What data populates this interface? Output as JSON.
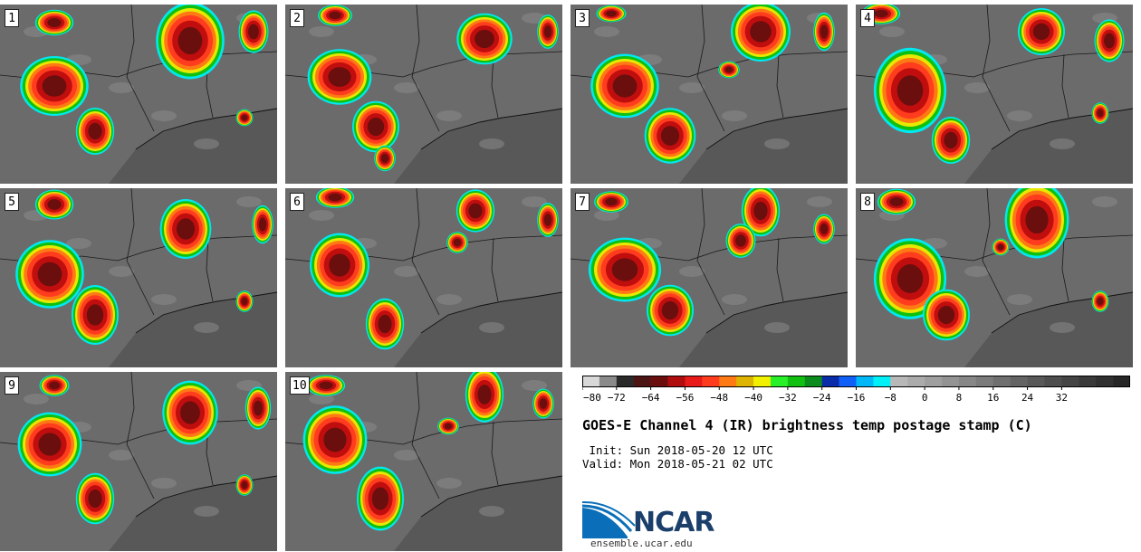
{
  "panels": [
    {
      "label": "1"
    },
    {
      "label": "2"
    },
    {
      "label": "3"
    },
    {
      "label": "4"
    },
    {
      "label": "5"
    },
    {
      "label": "6"
    },
    {
      "label": "7"
    },
    {
      "label": "8"
    },
    {
      "label": "9"
    },
    {
      "label": "10"
    }
  ],
  "colorbar": {
    "tick_labels": [
      "−80",
      "−72",
      "−64",
      "−56",
      "−48",
      "−40",
      "−32",
      "−24",
      "−16",
      "−8",
      "0",
      "8",
      "16",
      "24",
      "32"
    ],
    "colors": [
      "#d8d8d8",
      "#8a8a8a",
      "#2a2a2a",
      "#4d1414",
      "#6b0e0e",
      "#b00e0e",
      "#e81a1a",
      "#ff3c1e",
      "#ff7a14",
      "#ddb400",
      "#f0f000",
      "#28f028",
      "#12c012",
      "#0c8c1c",
      "#0a2ca8",
      "#1060f8",
      "#00b8f8",
      "#00f0f8",
      "#b8b8b8",
      "#ababab",
      "#9f9f9f",
      "#939393",
      "#878787",
      "#7b7b7b",
      "#6f6f6f",
      "#646464",
      "#595959",
      "#4e4e4e",
      "#444444",
      "#3a3a3a",
      "#303030",
      "#262626"
    ]
  },
  "title": "GOES-E Channel 4 (IR) brightness temp postage stamp (C)",
  "init_line": " Init: Sun 2018-05-20 12 UTC",
  "valid_line": "Valid: Mon 2018-05-21 02 UTC",
  "logo": {
    "text": "NCAR",
    "url": "ensemble.ucar.edu"
  }
}
